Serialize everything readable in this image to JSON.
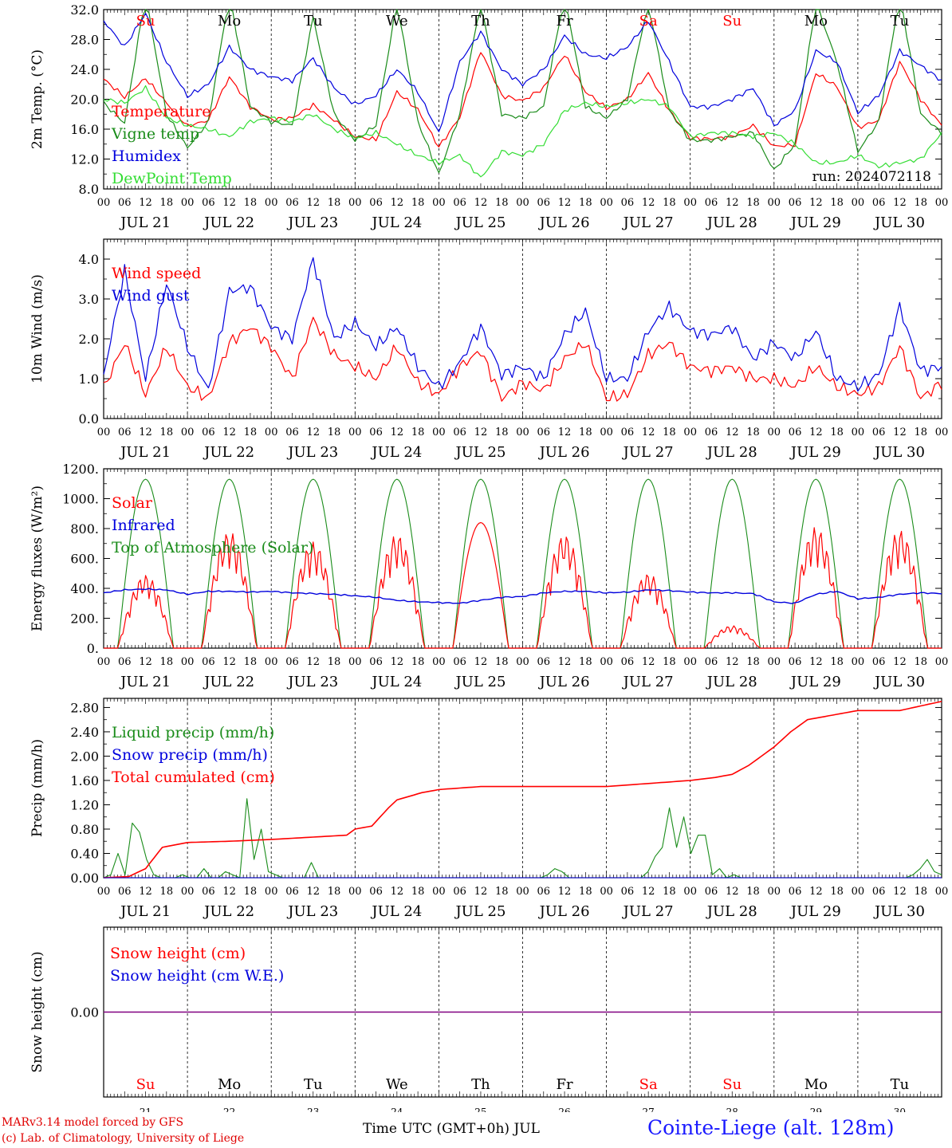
{
  "colors": {
    "red": "#ff0000",
    "green": "#1a8c1a",
    "blue": "#0000dd",
    "light_green": "#33dd33",
    "purple": "#800080",
    "weekend": "#ff0000"
  },
  "day_names": [
    "Su",
    "Mo",
    "Tu",
    "We",
    "Th",
    "Fr",
    "Sa",
    "Su",
    "Mo",
    "Tu"
  ],
  "weekend_flags": [
    true,
    false,
    false,
    false,
    false,
    false,
    true,
    true,
    false,
    false
  ],
  "date_labels": [
    "JUL 21",
    "JUL 22",
    "JUL 23",
    "JUL 24",
    "JUL 25",
    "JUL 26",
    "JUL 27",
    "JUL 28",
    "JUL 29",
    "JUL 30"
  ],
  "day_numbers": [
    "21",
    "22",
    "23",
    "24",
    "25",
    "26",
    "27",
    "28",
    "29",
    "30"
  ],
  "hour_labels": [
    "00",
    "06",
    "12",
    "18"
  ],
  "last_hour_label": "00",
  "run_label": "run: 2024072118",
  "footer": {
    "credit1": "MARv3.14 model forced by GFS",
    "credit2": "(c) Lab. of Climatology, University of Liege",
    "xtitle": "Time UTC (GMT+0h) JUL",
    "station": "Cointe-Liege (alt. 128m)"
  },
  "chart_data": [
    {
      "id": "temp",
      "type": "line",
      "ylabel": "2m Temp. (°C)",
      "ylim": [
        8,
        32
      ],
      "yticks": [
        8,
        12,
        16,
        20,
        24,
        28,
        32
      ],
      "ytick_labels": [
        "8.0",
        "12.0",
        "16.0",
        "20.0",
        "24.0",
        "28.0",
        "32.0"
      ],
      "x": [
        0,
        0.25,
        0.5,
        0.75,
        1,
        1.25,
        1.5,
        1.75,
        2,
        2.25,
        2.5,
        2.75,
        3,
        3.25,
        3.5,
        3.75,
        4,
        4.25,
        4.5,
        4.75,
        5,
        5.25,
        5.5,
        5.75,
        6,
        6.25,
        6.5,
        6.75,
        7,
        7.25,
        7.5,
        7.75,
        8,
        8.25,
        8.5,
        8.75,
        9,
        9.25,
        9.5,
        9.75,
        10
      ],
      "series": [
        {
          "name": "Temperature",
          "color": "#ff0000",
          "values": [
            22.7,
            20.3,
            22.8,
            19.5,
            16.4,
            17.2,
            23.0,
            19.0,
            17.3,
            17.5,
            19.2,
            17.2,
            15.0,
            14.6,
            21.0,
            18.6,
            13.6,
            17.6,
            26.5,
            20.5,
            19.8,
            21.5,
            26.0,
            21.0,
            18.8,
            20.0,
            23.5,
            18.5,
            14.8,
            14.7,
            15.0,
            16.5,
            13.7,
            13.9,
            23.5,
            21.7,
            16.2,
            17.2,
            25.0,
            20.0,
            16.5
          ]
        },
        {
          "name": "Vigne temp",
          "color": "#1a8c1a",
          "values": [
            19.5,
            16.8,
            34.0,
            18.0,
            13.5,
            17.0,
            34.0,
            19.0,
            17.0,
            16.5,
            31.0,
            18.0,
            14.5,
            16.5,
            33.0,
            17.0,
            10.0,
            18.0,
            33.0,
            18.0,
            17.5,
            19.0,
            34.0,
            19.0,
            17.5,
            20.0,
            33.0,
            18.5,
            14.5,
            14.5,
            15.0,
            15.5,
            10.5,
            14.0,
            33.0,
            25.0,
            13.0,
            17.0,
            34.0,
            18.0,
            15.5
          ]
        },
        {
          "name": "Humidex",
          "color": "#0000dd",
          "values": [
            30.5,
            27.0,
            31.5,
            25.0,
            20.4,
            22.0,
            27.0,
            24.0,
            23.0,
            22.5,
            25.5,
            21.5,
            19.3,
            20.5,
            24.0,
            21.0,
            15.5,
            25.0,
            29.0,
            24.0,
            22.0,
            24.0,
            28.5,
            26.0,
            25.5,
            27.0,
            30.5,
            25.0,
            19.0,
            19.0,
            20.0,
            21.5,
            16.5,
            18.5,
            26.5,
            25.0,
            18.2,
            20.5,
            26.5,
            24.5,
            22.5
          ]
        },
        {
          "name": "DewPoint Temp",
          "color": "#33dd33",
          "values": [
            20.0,
            19.5,
            21.5,
            17.5,
            16.5,
            16.0,
            15.0,
            17.0,
            17.5,
            17.0,
            18.0,
            16.0,
            14.8,
            15.5,
            14.0,
            12.5,
            11.5,
            12.5,
            9.5,
            13.0,
            12.5,
            14.0,
            18.5,
            19.5,
            19.0,
            19.5,
            20.0,
            19.0,
            15.0,
            15.5,
            15.5,
            15.0,
            15.5,
            14.0,
            11.5,
            11.5,
            12.5,
            11.0,
            11.5,
            12.0,
            15.5
          ]
        }
      ]
    },
    {
      "id": "wind",
      "type": "line",
      "ylabel": "10m Wind (m/s)",
      "ylim": [
        0,
        4.5
      ],
      "yticks": [
        0,
        1,
        2,
        3,
        4
      ],
      "ytick_labels": [
        "0.0",
        "1.0",
        "2.0",
        "3.0",
        "4.0"
      ],
      "x": [
        0,
        0.25,
        0.5,
        0.75,
        1,
        1.25,
        1.5,
        1.75,
        2,
        2.25,
        2.5,
        2.75,
        3,
        3.25,
        3.5,
        3.75,
        4,
        4.25,
        4.5,
        4.75,
        5,
        5.25,
        5.5,
        5.75,
        6,
        6.25,
        6.5,
        6.75,
        7,
        7.25,
        7.5,
        7.75,
        8,
        8.25,
        8.5,
        8.75,
        9,
        9.25,
        9.5,
        9.75,
        10
      ],
      "series": [
        {
          "name": "Wind speed",
          "color": "#ff0000",
          "values": [
            0.75,
            1.9,
            0.6,
            1.8,
            0.8,
            0.5,
            1.9,
            2.3,
            1.8,
            1.0,
            2.5,
            1.6,
            1.3,
            1.0,
            1.8,
            0.9,
            0.6,
            1.3,
            1.7,
            0.5,
            0.9,
            0.7,
            1.5,
            1.9,
            0.5,
            0.6,
            1.6,
            1.9,
            1.3,
            1.2,
            1.3,
            1.0,
            1.0,
            0.8,
            1.3,
            0.8,
            0.6,
            0.8,
            1.8,
            0.5,
            0.9
          ]
        },
        {
          "name": "Wind gust",
          "color": "#0000dd",
          "values": [
            1.1,
            3.7,
            1.0,
            3.4,
            1.8,
            0.7,
            3.2,
            3.3,
            2.3,
            2.0,
            4.0,
            2.0,
            2.4,
            1.8,
            2.3,
            1.3,
            0.8,
            1.4,
            2.3,
            1.1,
            1.3,
            1.0,
            2.1,
            2.7,
            1.0,
            1.0,
            2.2,
            2.8,
            2.2,
            2.1,
            2.3,
            1.5,
            1.9,
            1.5,
            2.2,
            1.0,
            0.8,
            1.1,
            2.8,
            1.2,
            1.3
          ]
        }
      ]
    },
    {
      "id": "energy",
      "type": "line",
      "ylabel": "Energy fluxes (W/m²)",
      "ylim": [
        0,
        1200
      ],
      "yticks": [
        0,
        200,
        400,
        600,
        800,
        1000,
        1200
      ],
      "ytick_labels": [
        "0.",
        "200.",
        "400.",
        "600.",
        "800.",
        "1000.",
        "1200."
      ],
      "solar_daily_peak": [
        490,
        780,
        710,
        760,
        840,
        760,
        500,
        150,
        810,
        790
      ],
      "toa_daily_peak": 1130,
      "infrared": [
        370,
        390,
        395,
        390,
        360,
        380,
        380,
        375,
        380,
        370,
        365,
        360,
        350,
        340,
        320,
        310,
        305,
        300,
        320,
        340,
        345,
        370,
        380,
        380,
        370,
        375,
        390,
        385,
        375,
        370,
        370,
        365,
        310,
        300,
        360,
        380,
        330,
        340,
        360,
        370,
        365
      ],
      "series": [
        {
          "name": "Solar",
          "color": "#ff0000"
        },
        {
          "name": "Infrared",
          "color": "#0000dd"
        },
        {
          "name": "Top of Atmosphere (Solar)",
          "color": "#1a8c1a"
        }
      ]
    },
    {
      "id": "precip",
      "type": "line",
      "ylabel": "Precip (mm/h)",
      "ylim": [
        0,
        2.95
      ],
      "yticks": [
        0,
        0.4,
        0.8,
        1.2,
        1.6,
        2.0,
        2.4,
        2.8
      ],
      "ytick_labels": [
        "0.00",
        "0.40",
        "0.80",
        "1.20",
        "1.60",
        "2.00",
        "2.40",
        "2.80"
      ],
      "liquid": [
        0,
        0.05,
        0.4,
        0.05,
        0.9,
        0.75,
        0.3,
        0.05,
        0,
        0,
        0,
        0.05,
        0,
        0,
        0.15,
        0,
        0,
        0.1,
        0.05,
        0,
        1.3,
        0.3,
        0.8,
        0.1,
        0.05,
        0,
        0,
        0,
        0,
        0.25,
        0,
        0,
        0,
        0,
        0,
        0,
        0,
        0,
        0,
        0,
        0,
        0,
        0,
        0,
        0,
        0,
        0,
        0,
        0,
        0,
        0,
        0,
        0,
        0,
        0,
        0,
        0,
        0,
        0,
        0,
        0,
        0,
        0.05,
        0.15,
        0.1,
        0,
        0,
        0,
        0,
        0,
        0,
        0,
        0,
        0,
        0,
        0,
        0.1,
        0.35,
        0.5,
        1.15,
        0.5,
        1.0,
        0.4,
        0.7,
        0.7,
        0.05,
        0.15,
        0,
        0.05,
        0,
        0,
        0,
        0,
        0,
        0,
        0,
        0,
        0,
        0,
        0,
        0,
        0,
        0,
        0,
        0,
        0,
        0,
        0,
        0,
        0,
        0,
        0,
        0,
        0.05,
        0.15,
        0.3,
        0.1,
        0.05
      ],
      "cumulated_x": [
        0,
        0.3,
        0.5,
        0.7,
        1.0,
        1.5,
        2.0,
        2.9,
        3.0,
        3.2,
        3.4,
        3.5,
        3.8,
        4.0,
        4.5,
        5.0,
        6.0,
        7.0,
        7.3,
        7.5,
        7.7,
        7.9,
        8.0,
        8.2,
        8.4,
        8.6,
        8.8,
        9.0,
        9.5,
        10.0
      ],
      "cumulated_y": [
        0,
        0.02,
        0.15,
        0.5,
        0.58,
        0.6,
        0.63,
        0.7,
        0.8,
        0.85,
        1.15,
        1.28,
        1.4,
        1.45,
        1.5,
        1.5,
        1.5,
        1.6,
        1.65,
        1.7,
        1.85,
        2.05,
        2.15,
        2.4,
        2.6,
        2.65,
        2.7,
        2.75,
        2.75,
        2.9
      ],
      "series": [
        {
          "name": "Liquid precip (mm/h)",
          "color": "#1a8c1a"
        },
        {
          "name": "Snow precip (mm/h)",
          "color": "#0000dd"
        },
        {
          "name": "Total cumulated (cm)",
          "color": "#ff0000"
        }
      ]
    },
    {
      "id": "snow",
      "type": "line",
      "ylabel": "Snow height (cm)",
      "yticks": [
        0
      ],
      "ytick_labels": [
        "0.00"
      ],
      "constant_value": 0,
      "series": [
        {
          "name": "Snow height (cm)",
          "color": "#ff0000"
        },
        {
          "name": "Snow height (cm W.E.)",
          "color": "#0000dd"
        }
      ]
    }
  ]
}
